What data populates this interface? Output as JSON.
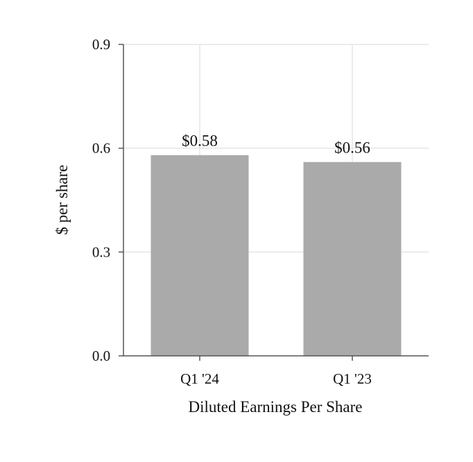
{
  "chart_data": {
    "type": "bar",
    "categories": [
      "Q1 '24",
      "Q1 '23"
    ],
    "values": [
      0.58,
      0.56
    ],
    "data_labels": [
      "$0.58",
      "$0.56"
    ],
    "title": "",
    "xlabel": "Diluted Earnings Per Share",
    "ylabel": "$ per share",
    "ylim": [
      0,
      0.9
    ],
    "yticks": [
      0.0,
      0.3,
      0.6,
      0.9
    ],
    "ytick_labels": [
      "0.0",
      "0.3",
      "0.6",
      "0.9"
    ],
    "grid": true,
    "legend": "none",
    "bar_color": "#aaaaaa",
    "grid_color": "#e5e5e5",
    "axis_color": "#555555"
  }
}
